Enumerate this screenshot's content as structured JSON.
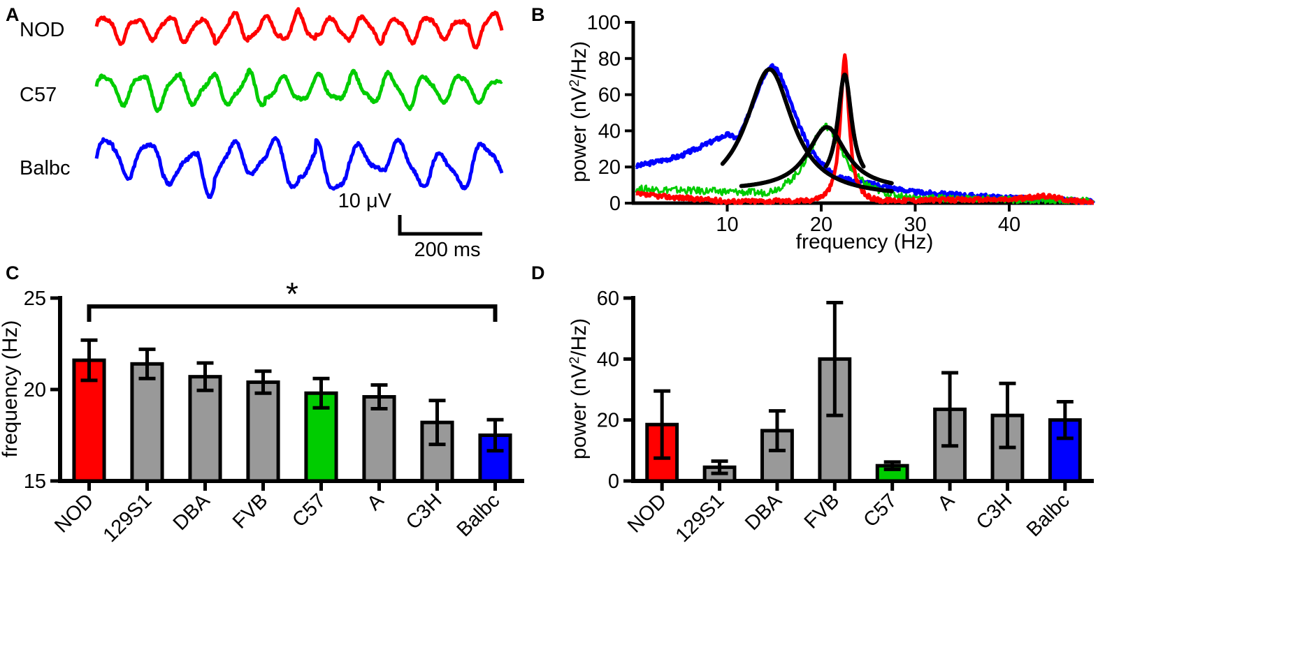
{
  "colors": {
    "NOD": "#ff0000",
    "C57": "#00cc00",
    "Balbc": "#0000ff",
    "gray": "#999999",
    "fit": "#000000"
  },
  "panel_labels": {
    "a": "A",
    "b": "B",
    "c": "C",
    "d": "D"
  },
  "chart_data": [
    {
      "panel": "A",
      "type": "line",
      "description_note": "example EEG traces",
      "traces": [
        {
          "name": "NOD",
          "color_key": "NOD",
          "freq_hz": 22,
          "amplitude": 1.0
        },
        {
          "name": "C57",
          "color_key": "C57",
          "freq_hz": 20,
          "amplitude": 1.1
        },
        {
          "name": "Balbc",
          "color_key": "Balbc",
          "freq_hz": 17,
          "amplitude": 1.6
        }
      ],
      "scalebar": {
        "amplitude_label": "10 μV",
        "time_label": "200 ms"
      }
    },
    {
      "panel": "B",
      "type": "line",
      "title": "",
      "xlabel": "frequency (Hz)",
      "ylabel_prefix": "power (nV",
      "ylabel_sup": "2",
      "ylabel_suffix": "/Hz)",
      "xlim": [
        0,
        49
      ],
      "ylim": [
        0,
        100
      ],
      "xticks": [
        10,
        20,
        30,
        40
      ],
      "yticks": [
        0,
        20,
        40,
        60,
        80,
        100
      ],
      "series": [
        {
          "name": "Balbc",
          "color_key": "Balbc",
          "peak_freq": 14.8,
          "peak_power": 75,
          "width": 3.2,
          "baseline": [
            [
              0,
              20
            ],
            [
              5,
              26
            ],
            [
              10,
              38
            ],
            [
              22,
              14
            ],
            [
              30,
              6
            ],
            [
              40,
              3
            ],
            [
              49,
              1
            ]
          ]
        },
        {
          "name": "C57",
          "color_key": "C57",
          "peak_freq": 20.5,
          "peak_power": 44,
          "width": 2.4,
          "baseline": [
            [
              0,
              8
            ],
            [
              12,
              6
            ],
            [
              30,
              3
            ],
            [
              49,
              1
            ]
          ]
        },
        {
          "name": "NOD",
          "color_key": "NOD",
          "peak_freq": 22.5,
          "peak_power": 81,
          "width": 0.55,
          "baseline": [
            [
              0,
              5
            ],
            [
              10,
              1
            ],
            [
              40,
              2
            ],
            [
              44,
              4
            ],
            [
              46,
              2
            ],
            [
              49,
              0
            ]
          ]
        }
      ],
      "fits": [
        {
          "name": "Balbc fit",
          "center": 14.5,
          "peak": 74,
          "width": 3.0,
          "range": [
            9.5,
            27.5
          ],
          "offset": 3
        },
        {
          "name": "C57 fit",
          "center": 20.6,
          "peak": 42,
          "width": 2.5,
          "range": [
            11.5,
            27.5
          ],
          "offset": 7
        },
        {
          "name": "NOD fit",
          "center": 22.5,
          "peak": 71,
          "width": 0.9,
          "range": [
            20.5,
            24.5
          ],
          "offset": 10
        }
      ]
    },
    {
      "panel": "C",
      "type": "bar",
      "categories": [
        "NOD",
        "129S1",
        "DBA",
        "FVB",
        "C57",
        "A",
        "C3H",
        "Balbc"
      ],
      "values": [
        21.6,
        21.4,
        20.7,
        20.4,
        19.8,
        19.6,
        18.2,
        17.5
      ],
      "errors": [
        1.1,
        0.8,
        0.75,
        0.6,
        0.8,
        0.65,
        1.2,
        0.85
      ],
      "bar_colors": [
        "NOD",
        "gray",
        "gray",
        "gray",
        "C57",
        "gray",
        "gray",
        "Balbc"
      ],
      "ylabel": "frequency (Hz)",
      "ylim": [
        15,
        25
      ],
      "yticks": [
        15,
        20,
        25
      ],
      "significance": {
        "from": "NOD",
        "to": "Balbc",
        "symbol": "*"
      }
    },
    {
      "panel": "D",
      "type": "bar",
      "categories": [
        "NOD",
        "129S1",
        "DBA",
        "FVB",
        "C57",
        "A",
        "C3H",
        "Balbc"
      ],
      "values": [
        18.5,
        4.5,
        16.5,
        40,
        5,
        23.5,
        21.5,
        20
      ],
      "errors": [
        11,
        2,
        6.5,
        18.5,
        1.2,
        12,
        10.5,
        6
      ],
      "bar_colors": [
        "NOD",
        "gray",
        "gray",
        "gray",
        "C57",
        "gray",
        "gray",
        "Balbc"
      ],
      "ylabel_prefix": "power (nV",
      "ylabel_sup": "2",
      "ylabel_suffix": "/Hz)",
      "ylim": [
        0,
        60
      ],
      "yticks": [
        0,
        20,
        40,
        60
      ]
    }
  ]
}
